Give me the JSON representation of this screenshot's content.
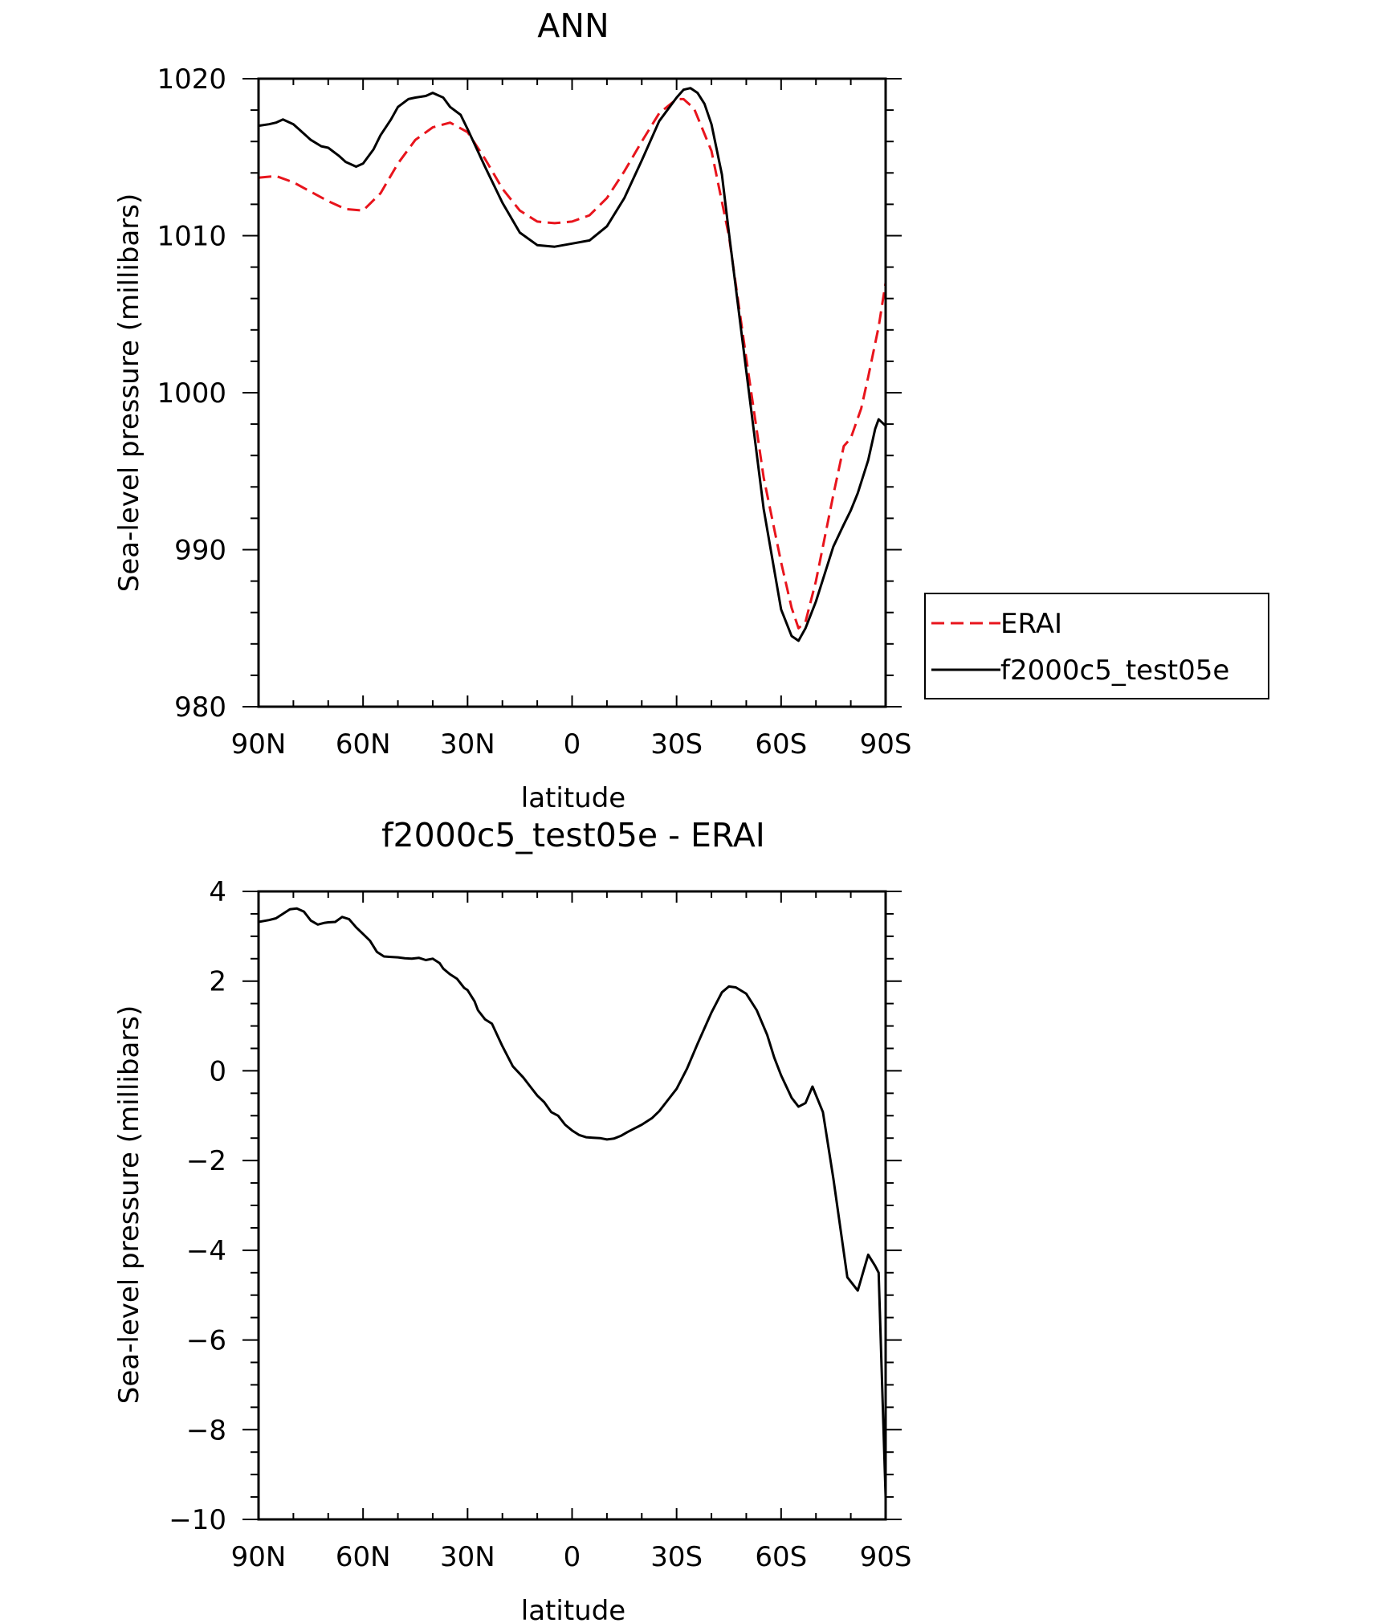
{
  "chart_data": [
    {
      "type": "line",
      "title": "ANN",
      "xlabel": "latitude",
      "ylabel": "Sea-level pressure (millibars)",
      "xlim": [
        90,
        -90
      ],
      "ylim": [
        980,
        1020
      ],
      "xticks": [
        90,
        60,
        30,
        0,
        -30,
        -60,
        -90
      ],
      "xtick_labels": [
        "90N",
        "60N",
        "30N",
        "0",
        "30S",
        "60S",
        "90S"
      ],
      "yticks": [
        980,
        990,
        1000,
        1010,
        1020
      ],
      "ytick_labels": [
        "980",
        "990",
        "1000",
        "1010",
        "1020"
      ],
      "legend_position": "right",
      "series": [
        {
          "name": "ERAI",
          "color": "#e8141c",
          "style": "dashed",
          "x": [
            90,
            85,
            80,
            75,
            70,
            65,
            60,
            55,
            50,
            45,
            40,
            35,
            30,
            25,
            20,
            15,
            10,
            5,
            0,
            -5,
            -10,
            -15,
            -20,
            -25,
            -30,
            -32,
            -35,
            -40,
            -45,
            -50,
            -55,
            -60,
            -63,
            -65,
            -67,
            -70,
            -75,
            -78,
            -80,
            -83,
            -85,
            -88,
            -90
          ],
          "values": [
            1013.7,
            1013.8,
            1013.4,
            1012.8,
            1012.2,
            1011.7,
            1011.6,
            1012.7,
            1014.6,
            1016.1,
            1016.9,
            1017.2,
            1016.6,
            1014.9,
            1013.0,
            1011.6,
            1010.9,
            1010.8,
            1010.9,
            1011.3,
            1012.4,
            1014.1,
            1016.0,
            1017.8,
            1018.7,
            1018.7,
            1018.1,
            1015.4,
            1010.0,
            1002.2,
            994.6,
            989.2,
            986.3,
            985.0,
            985.4,
            988.0,
            993.5,
            996.6,
            997.1,
            999.0,
            1001.0,
            1004.2,
            1007.0
          ]
        },
        {
          "name": "f2000c5_test05e",
          "color": "#000000",
          "style": "solid",
          "x": [
            90,
            87,
            85,
            83,
            80,
            78,
            75,
            72,
            70,
            67,
            65,
            62,
            60,
            57,
            55,
            52,
            50,
            47,
            45,
            42,
            40,
            37,
            35,
            32,
            30,
            25,
            20,
            15,
            10,
            5,
            0,
            -5,
            -10,
            -15,
            -20,
            -25,
            -30,
            -32,
            -34,
            -36,
            -38,
            -40,
            -43,
            -45,
            -50,
            -55,
            -60,
            -63,
            -65,
            -67,
            -70,
            -72,
            -75,
            -78,
            -80,
            -82,
            -85,
            -87,
            -88,
            -90
          ],
          "values": [
            1017.0,
            1017.1,
            1017.2,
            1017.4,
            1017.1,
            1016.7,
            1016.1,
            1015.7,
            1015.6,
            1015.1,
            1014.7,
            1014.4,
            1014.6,
            1015.5,
            1016.4,
            1017.4,
            1018.2,
            1018.7,
            1018.8,
            1018.9,
            1019.1,
            1018.8,
            1018.2,
            1017.7,
            1016.8,
            1014.4,
            1012.1,
            1010.2,
            1009.4,
            1009.3,
            1009.5,
            1009.7,
            1010.6,
            1012.4,
            1014.8,
            1017.3,
            1018.8,
            1019.3,
            1019.4,
            1019.1,
            1018.4,
            1017.1,
            1013.9,
            1010.2,
            1001.4,
            992.6,
            986.2,
            984.5,
            984.2,
            985.0,
            986.7,
            988.1,
            990.2,
            991.6,
            992.5,
            993.6,
            995.7,
            997.7,
            998.3,
            997.9
          ]
        }
      ]
    },
    {
      "type": "line",
      "title": "f2000c5_test05e - ERAI",
      "xlabel": "latitude",
      "ylabel": "Sea-level pressure (millibars)",
      "xlim": [
        90,
        -90
      ],
      "ylim": [
        -10,
        4
      ],
      "xticks": [
        90,
        60,
        30,
        0,
        -30,
        -60,
        -90
      ],
      "xtick_labels": [
        "90N",
        "60N",
        "30N",
        "0",
        "30S",
        "60S",
        "90S"
      ],
      "yticks": [
        -10,
        -8,
        -6,
        -4,
        -2,
        0,
        2,
        4
      ],
      "ytick_labels": [
        "−10",
        "−8",
        "−6",
        "−4",
        "−2",
        "0",
        "2",
        "4"
      ],
      "series": [
        {
          "name": "f2000c5_test05e - ERAI",
          "color": "#000000",
          "style": "solid",
          "x": [
            90,
            87,
            85,
            83,
            81,
            79,
            77,
            75,
            73,
            71,
            70,
            68,
            66,
            64,
            62,
            60,
            58,
            56,
            54,
            52,
            50,
            48,
            46,
            44,
            42,
            40,
            38,
            37,
            35,
            33,
            31,
            30,
            28,
            27,
            25,
            23,
            20,
            17,
            14,
            12,
            10,
            8,
            6,
            4,
            2,
            0,
            -2,
            -4,
            -6,
            -8,
            -10,
            -12,
            -14,
            -16,
            -18,
            -20,
            -23,
            -25,
            -27,
            -30,
            -33,
            -36,
            -40,
            -43,
            -45,
            -47,
            -50,
            -53,
            -56,
            -58,
            -60,
            -63,
            -65,
            -67,
            -69,
            -72,
            -75,
            -77,
            -79,
            -82,
            -85,
            -87,
            -88,
            -90
          ],
          "values": [
            3.32,
            3.36,
            3.4,
            3.5,
            3.6,
            3.62,
            3.55,
            3.35,
            3.26,
            3.3,
            3.31,
            3.32,
            3.43,
            3.38,
            3.2,
            3.05,
            2.9,
            2.65,
            2.55,
            2.54,
            2.53,
            2.51,
            2.5,
            2.52,
            2.47,
            2.5,
            2.4,
            2.28,
            2.15,
            2.05,
            1.85,
            1.8,
            1.55,
            1.35,
            1.15,
            1.05,
            0.55,
            0.1,
            -0.15,
            -0.35,
            -0.55,
            -0.7,
            -0.92,
            -1.0,
            -1.2,
            -1.33,
            -1.43,
            -1.48,
            -1.49,
            -1.5,
            -1.53,
            -1.51,
            -1.45,
            -1.36,
            -1.28,
            -1.2,
            -1.05,
            -0.9,
            -0.7,
            -0.4,
            0.05,
            0.6,
            1.3,
            1.75,
            1.88,
            1.86,
            1.72,
            1.35,
            0.8,
            0.3,
            -0.1,
            -0.6,
            -0.8,
            -0.72,
            -0.35,
            -0.92,
            -2.4,
            -3.5,
            -4.6,
            -4.9,
            -4.1,
            -4.35,
            -4.5,
            -9.5
          ]
        }
      ]
    }
  ]
}
